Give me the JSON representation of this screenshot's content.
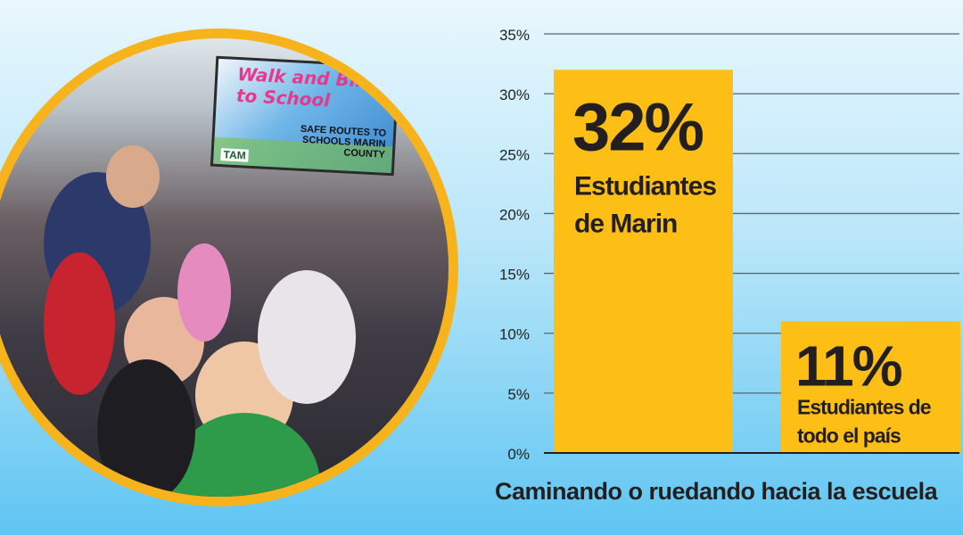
{
  "photo": {
    "sign_title": "Walk and Bike to School",
    "sign_program": "SAFE ROUTES TO SCHOOLS MARIN COUNTY",
    "sign_logo": "TAM"
  },
  "chart_data": {
    "type": "bar",
    "categories": [
      "Estudiantes de Marin",
      "Estudiantes de todo el país"
    ],
    "values": [
      32,
      11
    ],
    "value_labels": [
      "32%",
      "11%"
    ],
    "category_lines": [
      [
        "Estudiantes",
        "de Marin"
      ],
      [
        "Estudiantes de",
        "todo el país"
      ]
    ],
    "xlabel": "Caminando o ruedando hacia la escuela",
    "ylabel": "",
    "ylim": [
      0,
      35
    ],
    "yticks": [
      0,
      5,
      10,
      15,
      20,
      25,
      30,
      35
    ],
    "ytick_labels": [
      "0%",
      "5%",
      "10%",
      "15%",
      "20%",
      "25%",
      "30%",
      "35%"
    ],
    "grid": true,
    "bar_color": "#fdbf16",
    "text_color": "#231f20"
  }
}
